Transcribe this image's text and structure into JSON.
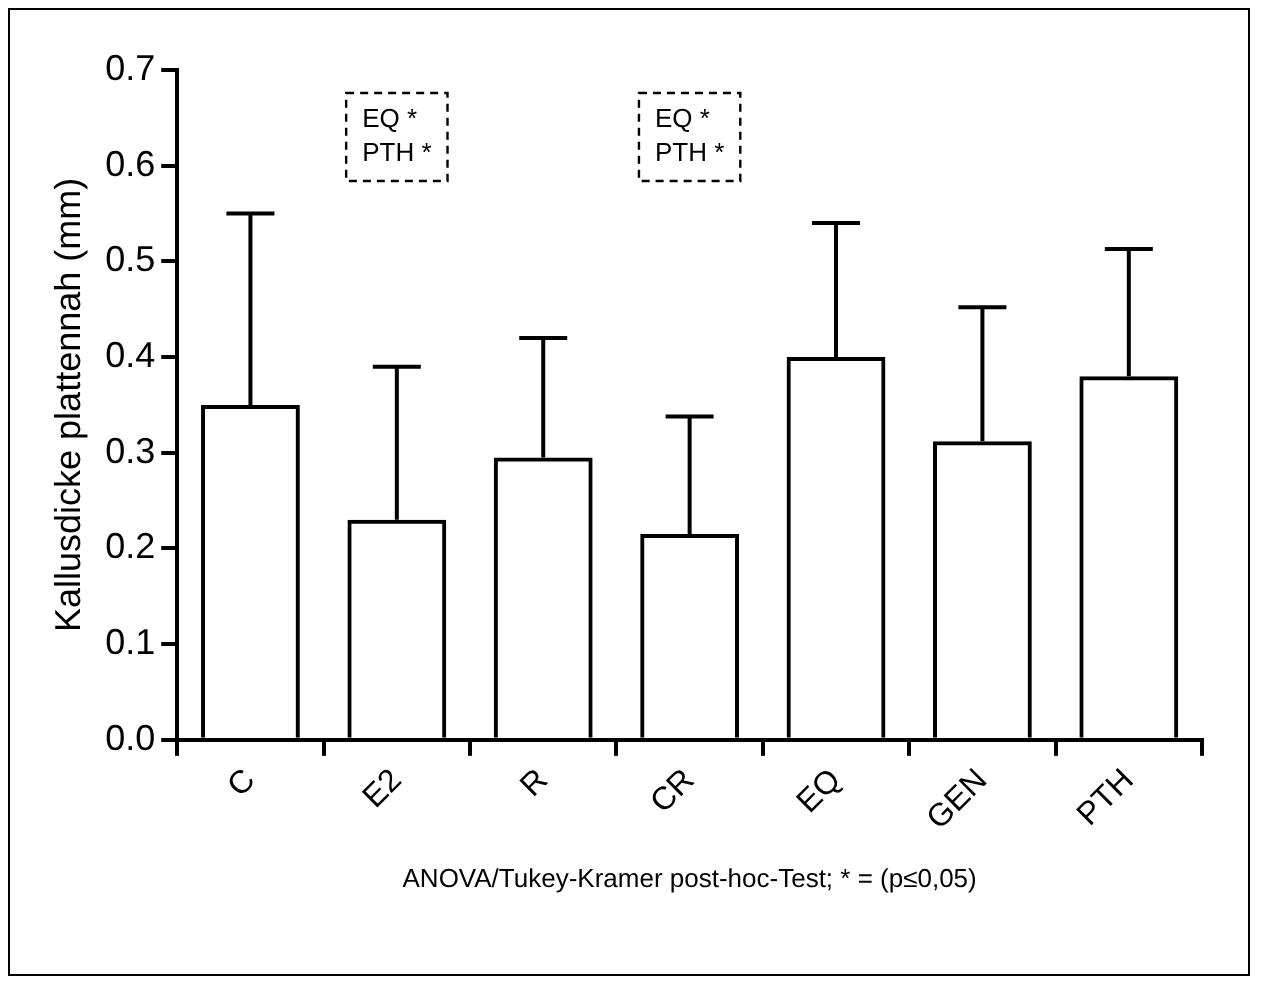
{
  "chart_data": {
    "type": "bar",
    "ylabel": "Kallusdicke plattennah (mm)",
    "categories": [
      "C",
      "E2",
      "R",
      "CR",
      "EQ",
      "GEN",
      "PTH"
    ],
    "values": [
      0.35,
      0.23,
      0.295,
      0.215,
      0.4,
      0.312,
      0.38
    ],
    "errors": [
      0.2,
      0.16,
      0.125,
      0.123,
      0.14,
      0.14,
      0.133
    ],
    "color": "#000000",
    "ylim": [
      0,
      0.7
    ],
    "yticks": [
      {
        "value": 0,
        "label": "0.0"
      },
      0.1,
      0.2,
      0.3,
      0.4,
      0.5,
      0.6,
      0.7
    ],
    "grid": false,
    "legend": false,
    "annotations": [
      "EQ *\nPTH *",
      "EQ *\nPTH *",
      "ANOVA/Tukey-Kramer post-hoc-Test; * = (p≤0,05)"
    ]
  }
}
